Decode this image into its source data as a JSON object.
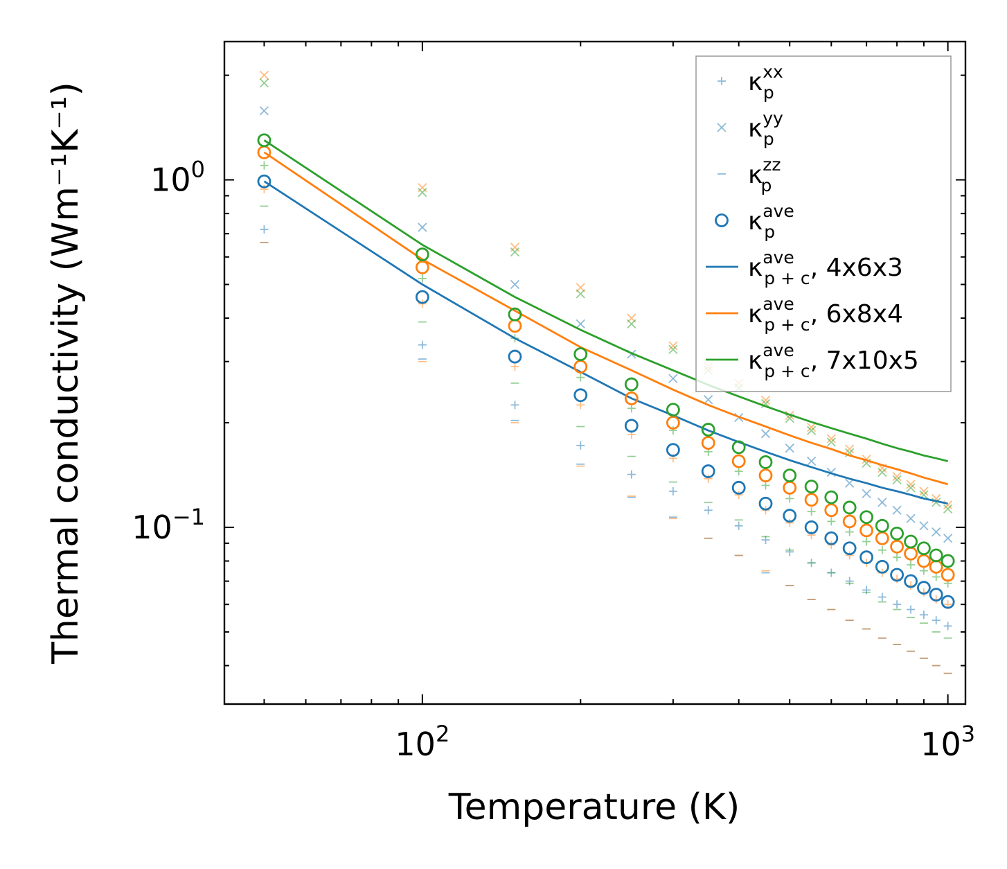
{
  "chart_data": {
    "type": "scatter",
    "xscale": "log",
    "yscale": "log",
    "xlabel": "Temperature (K)",
    "ylabel": "Thermal conductivity (Wm⁻¹K⁻¹)",
    "xlim": [
      42,
      1080
    ],
    "ylim": [
      0.031,
      2.5
    ],
    "xticks": [
      {
        "value": 100,
        "base": "10",
        "exp": "2"
      },
      {
        "value": 1000,
        "base": "10",
        "exp": "3"
      }
    ],
    "yticks": [
      {
        "value": 0.1,
        "base": "10",
        "exp": "−1"
      },
      {
        "value": 1,
        "base": "10",
        "exp": "0"
      }
    ],
    "x": [
      50,
      100,
      150,
      200,
      250,
      300,
      350,
      400,
      450,
      500,
      550,
      600,
      650,
      700,
      750,
      800,
      850,
      900,
      950,
      1000
    ],
    "colors": {
      "blue": "#1f77b4",
      "orange": "#ff7f0e",
      "green": "#2ca02c"
    },
    "legend": {
      "location": "top-right",
      "entries": [
        {
          "marker": "plus",
          "base": "κ",
          "sub": "p",
          "sup": "xx",
          "suffix": ""
        },
        {
          "marker": "x",
          "base": "κ",
          "sub": "p",
          "sup": "yy",
          "suffix": ""
        },
        {
          "marker": "dash",
          "base": "κ",
          "sub": "p",
          "sup": "zz",
          "suffix": ""
        },
        {
          "marker": "circle",
          "base": "κ",
          "sub": "p",
          "sup": "ave",
          "suffix": ""
        },
        {
          "marker": "line",
          "color": "#1f77b4",
          "base": "κ",
          "sub": "p + c",
          "sup": "ave",
          "suffix": ", 4x6x3"
        },
        {
          "marker": "line",
          "color": "#ff7f0e",
          "base": "κ",
          "sub": "p + c",
          "sup": "ave",
          "suffix": ", 6x8x4"
        },
        {
          "marker": "line",
          "color": "#2ca02c",
          "base": "κ",
          "sub": "p + c",
          "sup": "ave",
          "suffix": ", 7x10x5"
        }
      ]
    },
    "series": [
      {
        "name": "4x6x3",
        "color": "#1f77b4",
        "xx": [
          0.72,
          0.335,
          0.225,
          0.172,
          0.142,
          0.127,
          0.112,
          0.101,
          0.092,
          0.085,
          0.079,
          0.074,
          0.07,
          0.066,
          0.063,
          0.06,
          0.058,
          0.056,
          0.054,
          0.052
        ],
        "yy": [
          1.58,
          0.73,
          0.5,
          0.385,
          0.315,
          0.268,
          0.233,
          0.207,
          0.186,
          0.169,
          0.155,
          0.144,
          0.134,
          0.125,
          0.118,
          0.112,
          0.106,
          0.101,
          0.097,
          0.093
        ],
        "zz": [
          0.66,
          0.305,
          0.203,
          0.152,
          0.122,
          0.107,
          0.093,
          0.083,
          0.074,
          0.068,
          0.062,
          0.058,
          0.054,
          0.051,
          0.048,
          0.046,
          0.044,
          0.042,
          0.04,
          0.038
        ],
        "ave": [
          0.99,
          0.46,
          0.31,
          0.24,
          0.196,
          0.167,
          0.145,
          0.13,
          0.117,
          0.108,
          0.1,
          0.093,
          0.087,
          0.082,
          0.077,
          0.073,
          0.07,
          0.067,
          0.064,
          0.061
        ],
        "pc": [
          0.99,
          0.5,
          0.35,
          0.28,
          0.235,
          0.21,
          0.19,
          0.176,
          0.165,
          0.156,
          0.149,
          0.143,
          0.138,
          0.134,
          0.13,
          0.127,
          0.124,
          0.121,
          0.119,
          0.117
        ]
      },
      {
        "name": "6x8x4",
        "color": "#ff7f0e",
        "xx": [
          0.94,
          0.44,
          0.29,
          0.225,
          0.185,
          0.158,
          0.138,
          0.124,
          0.112,
          0.103,
          0.095,
          0.089,
          0.083,
          0.079,
          0.074,
          0.071,
          0.068,
          0.065,
          0.062,
          0.06
        ],
        "yy": [
          2.0,
          0.95,
          0.64,
          0.49,
          0.4,
          0.333,
          0.29,
          0.26,
          0.232,
          0.21,
          0.194,
          0.18,
          0.168,
          0.157,
          0.148,
          0.14,
          0.133,
          0.127,
          0.121,
          0.116
        ],
        "zz": [
          0.66,
          0.3,
          0.2,
          0.15,
          0.123,
          0.106,
          0.093,
          0.083,
          0.075,
          0.068,
          0.062,
          0.058,
          0.054,
          0.051,
          0.048,
          0.046,
          0.044,
          0.042,
          0.04,
          0.038
        ],
        "ave": [
          1.2,
          0.56,
          0.38,
          0.29,
          0.235,
          0.2,
          0.175,
          0.155,
          0.141,
          0.13,
          0.12,
          0.112,
          0.104,
          0.098,
          0.093,
          0.088,
          0.084,
          0.08,
          0.077,
          0.073
        ],
        "pc": [
          1.2,
          0.59,
          0.42,
          0.33,
          0.283,
          0.249,
          0.225,
          0.208,
          0.195,
          0.184,
          0.175,
          0.168,
          0.161,
          0.156,
          0.151,
          0.147,
          0.143,
          0.139,
          0.136,
          0.133
        ]
      },
      {
        "name": "7x10x5",
        "color": "#2ca02c",
        "xx": [
          1.1,
          0.52,
          0.35,
          0.27,
          0.22,
          0.19,
          0.165,
          0.145,
          0.132,
          0.121,
          0.111,
          0.104,
          0.097,
          0.091,
          0.086,
          0.082,
          0.078,
          0.075,
          0.072,
          0.069
        ],
        "yy": [
          1.9,
          0.92,
          0.62,
          0.47,
          0.385,
          0.325,
          0.283,
          0.252,
          0.227,
          0.206,
          0.19,
          0.176,
          0.164,
          0.153,
          0.144,
          0.137,
          0.13,
          0.124,
          0.118,
          0.113
        ],
        "zz": [
          0.84,
          0.39,
          0.26,
          0.195,
          0.16,
          0.135,
          0.118,
          0.105,
          0.094,
          0.086,
          0.079,
          0.074,
          0.069,
          0.065,
          0.061,
          0.058,
          0.055,
          0.053,
          0.05,
          0.048
        ],
        "ave": [
          1.3,
          0.61,
          0.41,
          0.315,
          0.258,
          0.218,
          0.191,
          0.17,
          0.154,
          0.141,
          0.131,
          0.122,
          0.114,
          0.107,
          0.101,
          0.096,
          0.091,
          0.087,
          0.083,
          0.08
        ],
        "pc": [
          1.3,
          0.65,
          0.46,
          0.37,
          0.317,
          0.283,
          0.257,
          0.238,
          0.223,
          0.211,
          0.201,
          0.193,
          0.186,
          0.18,
          0.174,
          0.169,
          0.165,
          0.161,
          0.158,
          0.155
        ]
      }
    ]
  }
}
